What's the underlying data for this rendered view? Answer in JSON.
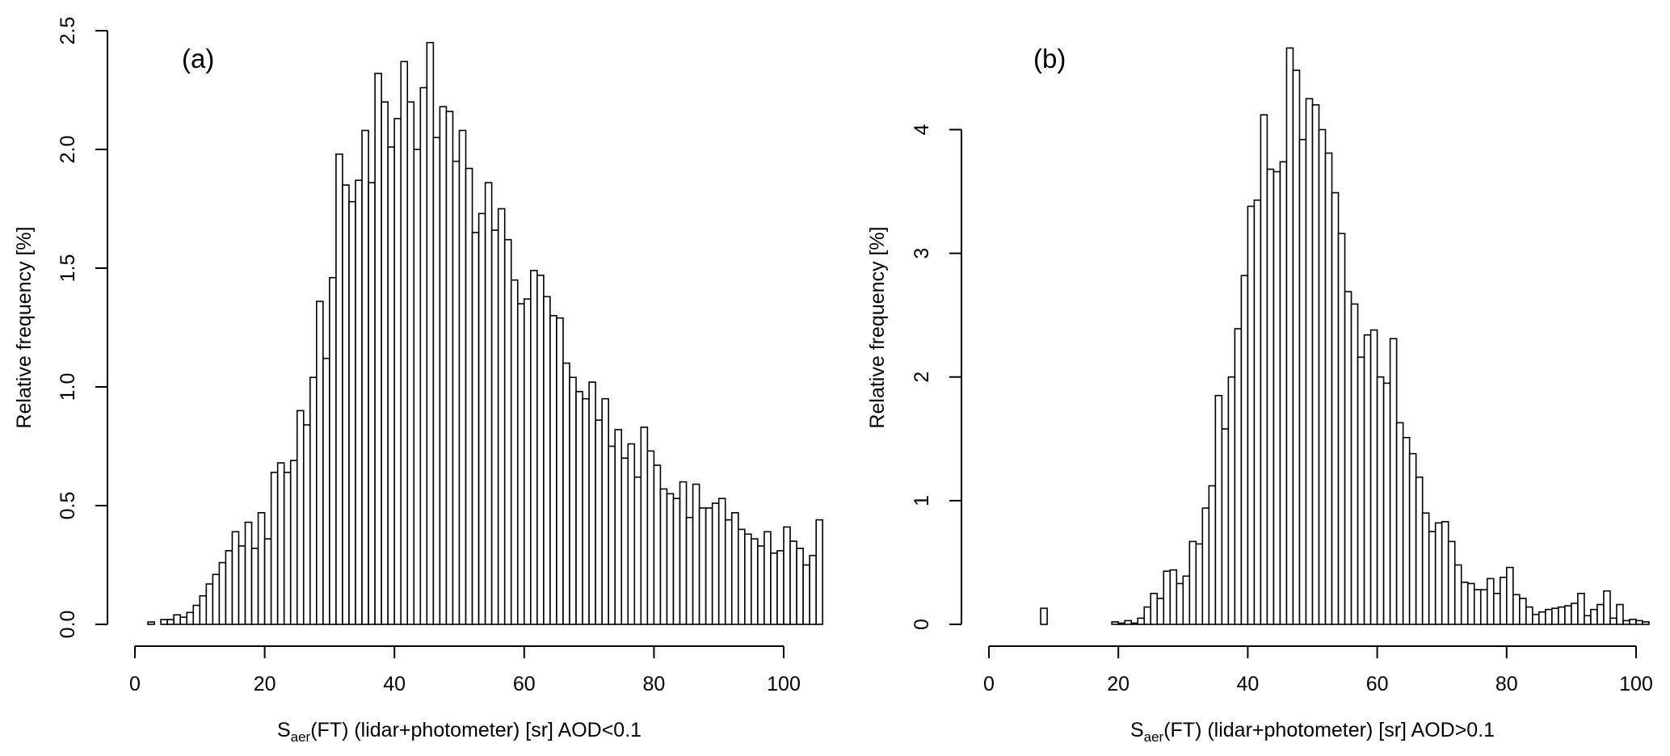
{
  "chart_data": [
    {
      "type": "bar",
      "panel_label": "(a)",
      "xlabel": {
        "main": "S",
        "sub": "aer",
        "rest": "(FT) (lidar+photometer) [sr] AOD<0.1"
      },
      "ylabel": "Relative frequency [%]",
      "xlim": [
        0,
        100
      ],
      "ylim": [
        0,
        2.5
      ],
      "xticks": [
        0,
        20,
        40,
        60,
        80,
        100
      ],
      "yticks": [
        0.0,
        0.5,
        1.0,
        1.5,
        2.0,
        2.5
      ],
      "ytick_labels": [
        "0.0",
        "0.5",
        "1.0",
        "1.5",
        "2.0",
        "2.5"
      ],
      "y_tick_rotated": true,
      "bin_start": 2,
      "bin_width": 1,
      "values": [
        0.01,
        0.0,
        0.02,
        0.02,
        0.04,
        0.03,
        0.05,
        0.08,
        0.12,
        0.17,
        0.21,
        0.26,
        0.31,
        0.39,
        0.33,
        0.43,
        0.32,
        0.47,
        0.36,
        0.64,
        0.68,
        0.64,
        0.69,
        0.9,
        0.84,
        1.04,
        1.36,
        1.12,
        1.46,
        1.98,
        1.85,
        1.78,
        1.87,
        2.08,
        1.86,
        2.32,
        2.2,
        2.01,
        2.13,
        2.37,
        2.2,
        2.0,
        2.26,
        2.45,
        2.05,
        2.18,
        2.16,
        1.95,
        2.08,
        1.92,
        1.65,
        1.73,
        1.86,
        1.66,
        1.75,
        1.62,
        1.45,
        1.35,
        1.37,
        1.49,
        1.47,
        1.38,
        1.3,
        1.29,
        1.1,
        1.04,
        0.98,
        0.95,
        1.02,
        0.86,
        0.95,
        0.75,
        0.82,
        0.7,
        0.76,
        0.62,
        0.83,
        0.73,
        0.67,
        0.57,
        0.55,
        0.53,
        0.6,
        0.45,
        0.59,
        0.49,
        0.49,
        0.51,
        0.53,
        0.44,
        0.47,
        0.4,
        0.38,
        0.36,
        0.33,
        0.39,
        0.3,
        0.31,
        0.41,
        0.35,
        0.32,
        0.25,
        0.29,
        0.44
      ],
      "grid": false
    },
    {
      "type": "bar",
      "panel_label": "(b)",
      "xlabel": {
        "main": "S",
        "sub": "aer",
        "rest": "(FT) (lidar+photometer) [sr] AOD>0.1"
      },
      "ylabel": "Relative frequency [%]",
      "xlim": [
        0,
        100
      ],
      "ylim": [
        0,
        4.8
      ],
      "xticks": [
        0,
        20,
        40,
        60,
        80,
        100
      ],
      "yticks": [
        0,
        1,
        2,
        3,
        4
      ],
      "ytick_labels": [
        "0",
        "1",
        "2",
        "3",
        "4"
      ],
      "y_tick_rotated": true,
      "bin_start": 8,
      "bin_width": 1,
      "values": [
        0.13,
        0,
        0,
        0,
        0,
        0,
        0,
        0,
        0,
        0,
        0,
        0.02,
        0.01,
        0.03,
        0.01,
        0.05,
        0.14,
        0.25,
        0.21,
        0.43,
        0.44,
        0.33,
        0.39,
        0.67,
        0.65,
        0.94,
        1.12,
        1.85,
        1.58,
        2.0,
        2.39,
        2.82,
        3.38,
        3.43,
        4.12,
        3.68,
        3.66,
        3.74,
        4.66,
        4.48,
        3.92,
        4.25,
        4.2,
        4.0,
        3.81,
        3.49,
        3.16,
        2.69,
        2.59,
        2.16,
        2.34,
        2.38,
        2.0,
        1.95,
        2.31,
        1.63,
        1.51,
        1.38,
        1.19,
        0.9,
        0.75,
        0.82,
        0.83,
        0.67,
        0.48,
        0.34,
        0.33,
        0.28,
        0.28,
        0.37,
        0.25,
        0.38,
        0.46,
        0.24,
        0.21,
        0.14,
        0.08,
        0.1,
        0.12,
        0.13,
        0.14,
        0.15,
        0.17,
        0.25,
        0.07,
        0.12,
        0.16,
        0.27,
        0.05,
        0.16,
        0.03,
        0.04,
        0.03,
        0.02
      ],
      "grid": false
    }
  ]
}
